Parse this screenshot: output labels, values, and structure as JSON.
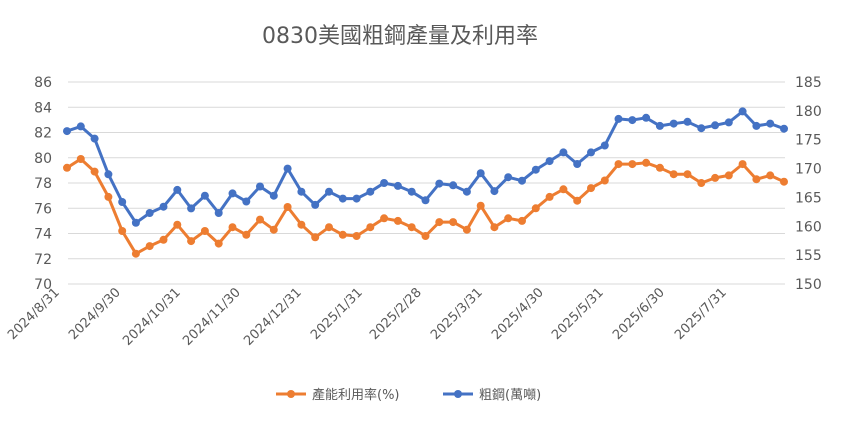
{
  "chart_data": {
    "type": "line",
    "title": "0830美國粗鋼產量及利用率",
    "x_labels": [
      "2024/8/31",
      "2024/9/30",
      "2024/10/31",
      "2024/11/30",
      "2024/12/31",
      "2025/1/31",
      "2025/2/28",
      "2025/3/31",
      "2025/4/30",
      "2025/5/31",
      "2025/6/30",
      "2025/7/31"
    ],
    "left_axis": {
      "min": 70,
      "max": 86,
      "step": 2,
      "ticks": [
        "70",
        "72",
        "74",
        "76",
        "78",
        "80",
        "82",
        "84",
        "86"
      ]
    },
    "right_axis": {
      "min": 150,
      "max": 185,
      "step": 5,
      "ticks": [
        "150",
        "155",
        "160",
        "165",
        "170",
        "175",
        "180",
        "185"
      ]
    },
    "series": [
      {
        "name": "產能利用率(%)",
        "axis": "left",
        "color": "#ed7d31",
        "values": [
          79.2,
          79.9,
          78.9,
          76.9,
          74.2,
          72.4,
          73.0,
          73.5,
          74.7,
          73.4,
          74.2,
          73.2,
          74.5,
          73.9,
          75.1,
          74.3,
          76.1,
          74.7,
          73.7,
          74.5,
          73.9,
          73.8,
          74.5,
          75.2,
          75.0,
          74.5,
          73.8,
          74.9,
          74.9,
          74.3,
          76.2,
          74.5,
          75.2,
          75.0,
          76.0,
          76.9,
          77.5,
          76.6,
          77.6,
          78.2,
          79.5,
          79.5,
          79.6,
          79.2,
          78.7,
          78.7,
          78.0,
          78.4,
          78.6,
          79.5,
          78.3,
          78.6,
          78.1
        ]
      },
      {
        "name": "粗鋼(萬噸)",
        "axis": "right",
        "color": "#4472c4",
        "values": [
          176.5,
          177.3,
          175.2,
          169.0,
          164.2,
          160.6,
          162.3,
          163.4,
          166.3,
          163.1,
          165.3,
          162.3,
          165.7,
          164.3,
          166.9,
          165.3,
          170.0,
          166.0,
          163.7,
          166.0,
          164.8,
          164.8,
          166.0,
          167.5,
          167.0,
          166.0,
          164.5,
          167.4,
          167.1,
          166.0,
          169.2,
          166.1,
          168.5,
          167.9,
          169.8,
          171.3,
          172.8,
          170.8,
          172.8,
          174.0,
          178.6,
          178.4,
          178.8,
          177.4,
          177.8,
          178.1,
          177.0,
          177.5,
          178.0,
          179.9,
          177.4,
          177.8,
          176.9
        ]
      }
    ]
  }
}
